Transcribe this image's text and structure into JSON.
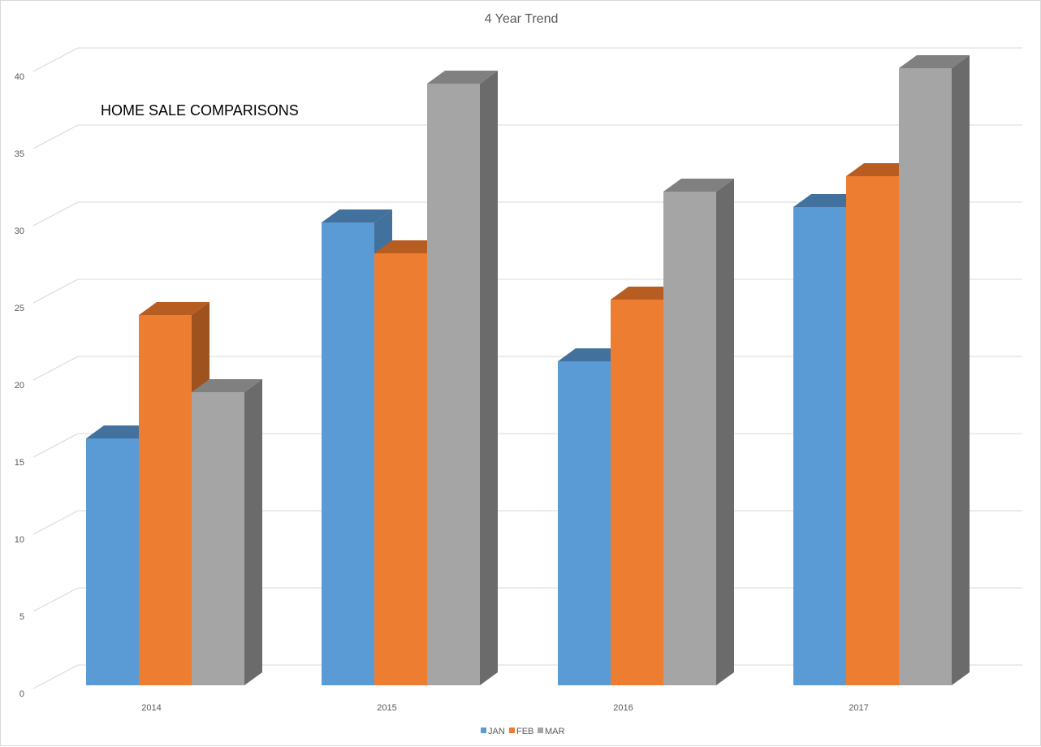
{
  "chart_data": {
    "type": "bar",
    "title": "4 Year Trend",
    "annotation": "HOME SALE COMPARISONS",
    "categories": [
      "2014",
      "2015",
      "2016",
      "2017"
    ],
    "series": [
      {
        "name": "JAN",
        "values": [
          16,
          30,
          21,
          31
        ],
        "color": "#5b9bd5",
        "side": "#41719c",
        "top": "#41719c"
      },
      {
        "name": "FEB",
        "values": [
          24,
          28,
          25,
          33
        ],
        "color": "#ed7d31",
        "side": "#9e531f",
        "top": "#b85d22"
      },
      {
        "name": "MAR",
        "values": [
          19,
          39,
          32,
          40
        ],
        "color": "#a5a5a5",
        "side": "#6b6b6b",
        "top": "#808080"
      }
    ],
    "ylim": [
      0,
      40
    ],
    "yticks": [
      "0",
      "5",
      "10",
      "15",
      "20",
      "25",
      "30",
      "35",
      "40"
    ],
    "xlabel": "",
    "ylabel": "",
    "grid": true,
    "legend_position": "bottom"
  }
}
